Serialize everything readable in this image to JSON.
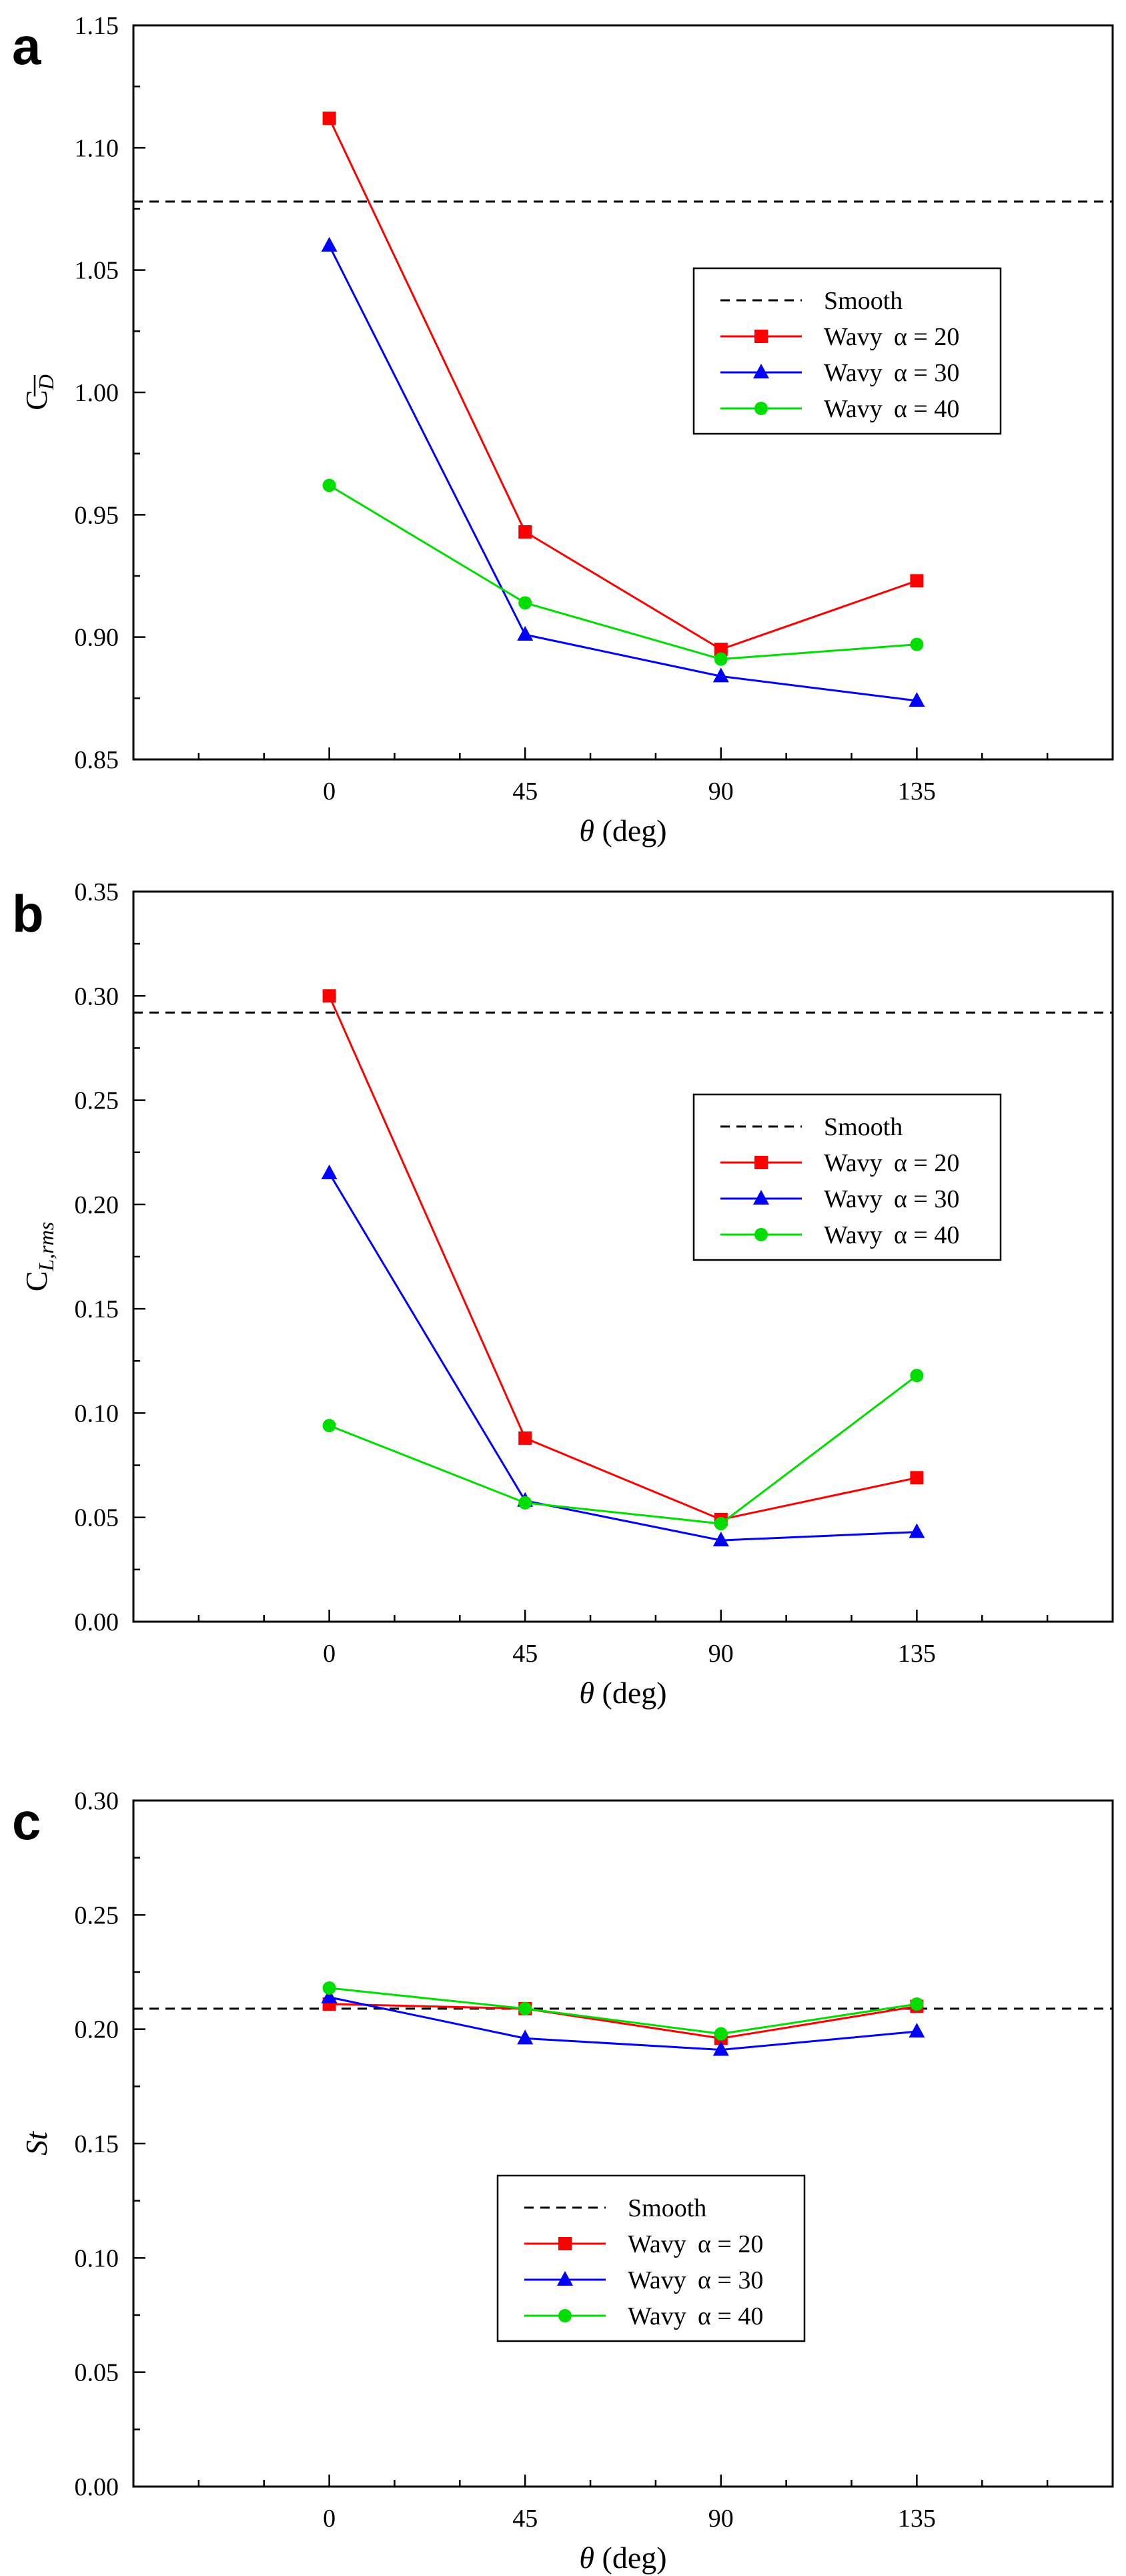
{
  "chart_data": [
    {
      "type": "line",
      "panel_label": "a",
      "title": "",
      "xlabel_symbol": "θ",
      "xlabel_unit": "(deg)",
      "ylabel_main": "C",
      "ylabel_sub": "D",
      "categories": [
        "0",
        "45",
        "90",
        "135"
      ],
      "x": [
        0,
        45,
        90,
        135
      ],
      "xlim": [
        -45,
        180
      ],
      "ylim": [
        0.85,
        1.15
      ],
      "yticks": [
        "0.85",
        "0.90",
        "0.95",
        "1.00",
        "1.05",
        "1.10",
        "1.15"
      ],
      "yticks_values": [
        0.85,
        0.9,
        0.95,
        1.0,
        1.05,
        1.1,
        1.15
      ],
      "smooth": {
        "name": "Smooth",
        "value": 1.078
      },
      "series": [
        {
          "name": "Wavy",
          "alpha_label": "α = 20",
          "color": "#ff0000",
          "marker": "square",
          "values": [
            1.112,
            0.943,
            0.895,
            0.923
          ]
        },
        {
          "name": "Wavy",
          "alpha_label": "α = 30",
          "color": "#0000ff",
          "marker": "triangle",
          "values": [
            1.06,
            0.901,
            0.884,
            0.874
          ]
        },
        {
          "name": "Wavy",
          "alpha_label": "α = 40",
          "color": "#00dd00",
          "marker": "circle",
          "values": [
            0.962,
            0.914,
            0.891,
            0.897
          ]
        }
      ],
      "legend_position": "center-right"
    },
    {
      "type": "line",
      "panel_label": "b",
      "title": "",
      "xlabel_symbol": "θ",
      "xlabel_unit": "(deg)",
      "ylabel_main": "C",
      "ylabel_sub": "L,rms",
      "categories": [
        "0",
        "45",
        "90",
        "135"
      ],
      "x": [
        0,
        45,
        90,
        135
      ],
      "xlim": [
        -45,
        180
      ],
      "ylim": [
        0.0,
        0.35
      ],
      "yticks": [
        "0.00",
        "0.05",
        "0.10",
        "0.15",
        "0.20",
        "0.25",
        "0.30",
        "0.35"
      ],
      "yticks_values": [
        0.0,
        0.05,
        0.1,
        0.15,
        0.2,
        0.25,
        0.3,
        0.35
      ],
      "smooth": {
        "name": "Smooth",
        "value": 0.292
      },
      "series": [
        {
          "name": "Wavy",
          "alpha_label": "α = 20",
          "color": "#ff0000",
          "marker": "square",
          "values": [
            0.3,
            0.088,
            0.049,
            0.069
          ]
        },
        {
          "name": "Wavy",
          "alpha_label": "α = 30",
          "color": "#0000ff",
          "marker": "triangle",
          "values": [
            0.215,
            0.058,
            0.039,
            0.043
          ]
        },
        {
          "name": "Wavy",
          "alpha_label": "α = 40",
          "color": "#00dd00",
          "marker": "circle",
          "values": [
            0.094,
            0.057,
            0.047,
            0.118
          ]
        }
      ],
      "legend_position": "center-right"
    },
    {
      "type": "line",
      "panel_label": "c",
      "title": "",
      "xlabel_symbol": "θ",
      "xlabel_unit": "(deg)",
      "ylabel_main": "St",
      "ylabel_sub": "",
      "categories": [
        "0",
        "45",
        "90",
        "135"
      ],
      "x": [
        0,
        45,
        90,
        135
      ],
      "xlim": [
        -45,
        180
      ],
      "ylim": [
        0.0,
        0.3
      ],
      "yticks": [
        "0.00",
        "0.05",
        "0.10",
        "0.15",
        "0.20",
        "0.25",
        "0.30"
      ],
      "yticks_values": [
        0.0,
        0.05,
        0.1,
        0.15,
        0.2,
        0.25,
        0.3
      ],
      "smooth": {
        "name": "Smooth",
        "value": 0.209
      },
      "series": [
        {
          "name": "Wavy",
          "alpha_label": "α = 20",
          "color": "#ff0000",
          "marker": "square",
          "values": [
            0.211,
            0.209,
            0.196,
            0.21
          ]
        },
        {
          "name": "Wavy",
          "alpha_label": "α = 30",
          "color": "#0000ff",
          "marker": "triangle",
          "values": [
            0.214,
            0.196,
            0.191,
            0.199
          ]
        },
        {
          "name": "Wavy",
          "alpha_label": "α = 40",
          "color": "#00dd00",
          "marker": "circle",
          "values": [
            0.218,
            0.209,
            0.198,
            0.211
          ]
        }
      ],
      "legend_position": "lower-center"
    }
  ]
}
